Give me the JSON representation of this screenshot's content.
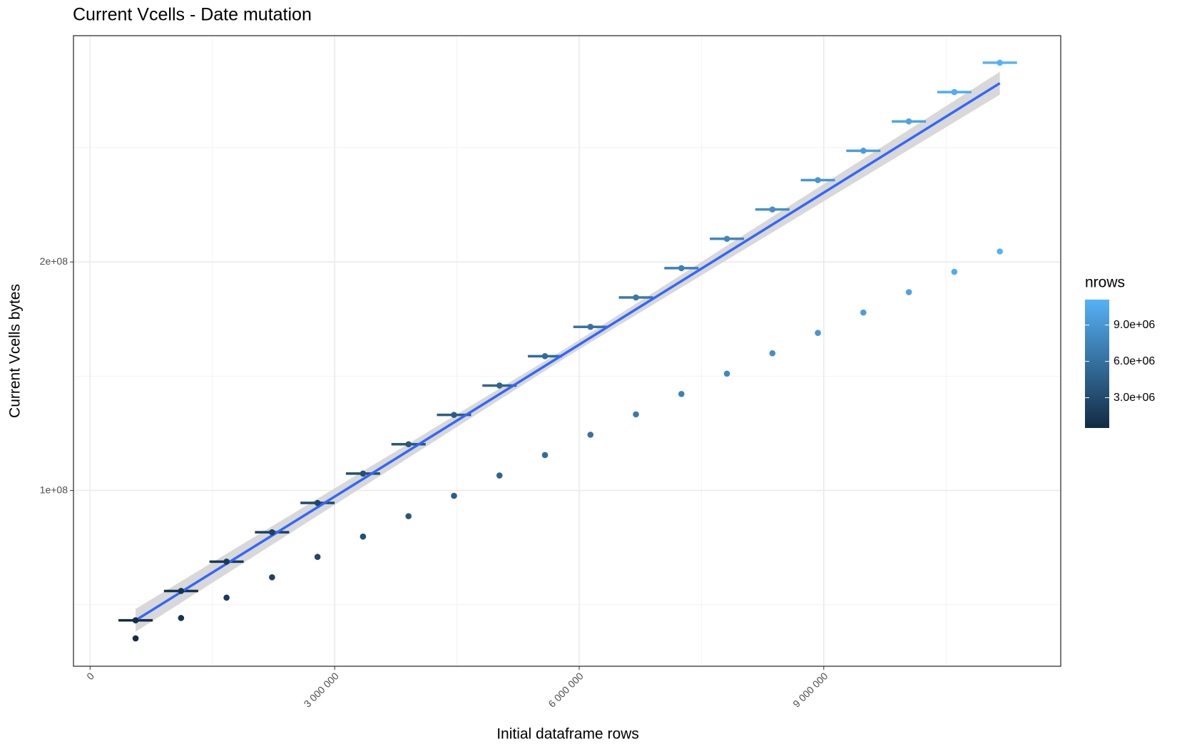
{
  "chart_data": {
    "type": "scatter",
    "title": "Current Vcells - Date mutation",
    "x_label": "Initial dataframe rows",
    "y_label": "Current Vcells bytes",
    "x": [
      558000,
      1116000,
      1674000,
      2232000,
      2790000,
      3348000,
      3906000,
      4464000,
      5022000,
      5580000,
      6138000,
      6696000,
      7254000,
      7812000,
      8370000,
      8928000,
      9486000,
      10044000,
      10602000,
      11160000
    ],
    "series": [
      {
        "values": [
          43200000,
          56040000,
          68880000,
          81720000,
          94560000,
          107400000,
          120240000,
          133080000,
          145920000,
          158760000,
          171600000,
          184440000,
          197280000,
          210120000,
          222960000,
          235800000,
          248640000,
          261480000,
          274320000,
          287160000
        ],
        "xerr": [
          210000,
          210000,
          210000,
          210000,
          210000,
          210000,
          210000,
          210000,
          210000,
          210000,
          210000,
          210000,
          210000,
          210000,
          210000,
          210000,
          210000,
          210000,
          210000,
          210000
        ]
      },
      {
        "values": [
          35300000,
          44210000,
          53120000,
          62030000,
          70940000,
          79850000,
          88760000,
          97670000,
          106580000,
          115490000,
          124400000,
          133310000,
          142220000,
          151130000,
          160040000,
          168950000,
          177860000,
          186770000,
          195680000,
          204590000
        ]
      }
    ],
    "trend": {
      "color": "#3366ff",
      "band_color": "#d4d4d4",
      "x": [
        558000,
        5859000,
        11160000
      ],
      "values": [
        43200000,
        160700000,
        278200000
      ],
      "lower": [
        38200000,
        158700000,
        273200000
      ],
      "upper": [
        48200000,
        162700000,
        283200000
      ]
    },
    "color_scale": {
      "title": "nrows",
      "low": "#132B43",
      "high": "#56B1F7",
      "limits": [
        500000,
        11100000
      ],
      "ticks": [
        {
          "value": 3000000,
          "label": "3.0e+06"
        },
        {
          "value": 6000000,
          "label": "6.0e+06"
        },
        {
          "value": 9000000,
          "label": "9.0e+06"
        }
      ]
    },
    "xlim": [
      -204000,
      11907000
    ],
    "xticks": [
      0,
      {
        "value": 3000000,
        "label": "3 000 000"
      },
      {
        "value": 6000000,
        "label": "6 000 000"
      },
      {
        "value": 9000000,
        "label": "9 000 000"
      }
    ],
    "xminor": [
      1500000,
      4500000,
      7500000,
      10500000
    ],
    "ylim": [
      23100000,
      299000000
    ],
    "yticks": [
      {
        "value": 100000000,
        "label": "1e+08"
      },
      {
        "value": 200000000,
        "label": "2e+08"
      }
    ],
    "yminor": [
      50000000,
      150000000,
      250000000
    ],
    "grid": true
  }
}
